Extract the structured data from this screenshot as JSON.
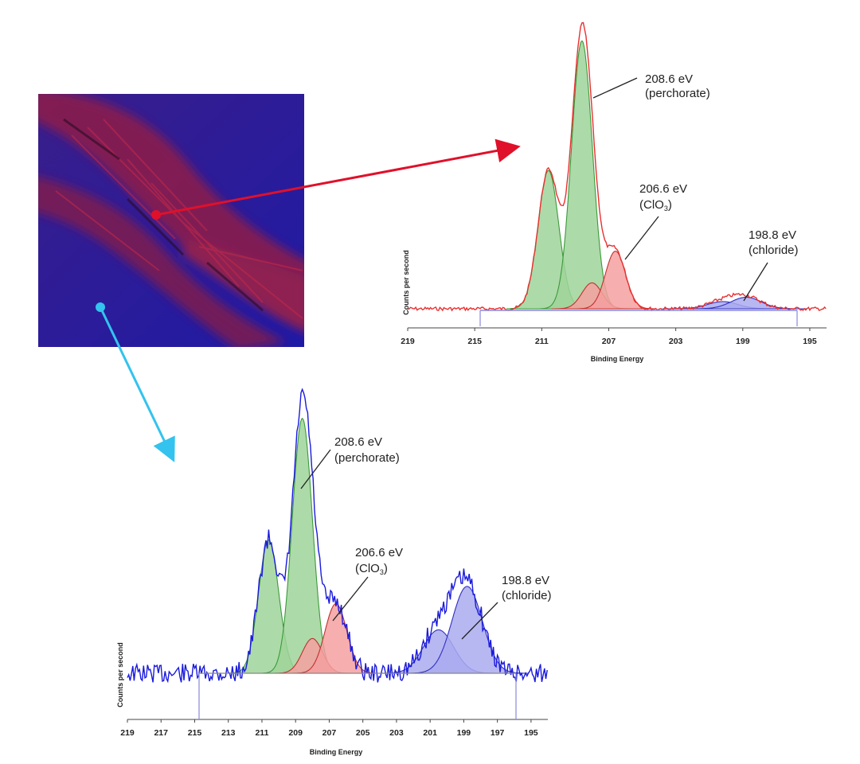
{
  "colors": {
    "surface_red": "#b0203a",
    "surface_blue": "#2a1fa8",
    "arrow_red": "#e0102a",
    "arrow_cyan": "#33c3ee",
    "spectrum_top": "#e83030",
    "spectrum_bottom": "#1a1adc",
    "peak_green": "#9fd49a",
    "peak_red": "#f4a0a0",
    "peak_blue": "#aaaaf0"
  },
  "chart_data": [
    {
      "type": "line",
      "id": "top-spectrum",
      "xlabel": "Binding Energy",
      "ylabel": "Counts per second",
      "xlim": [
        219,
        194
      ],
      "x_reversed": true,
      "ylim": [
        0,
        100
      ],
      "xticks": [
        "219",
        "215",
        "211",
        "207",
        "203",
        "199",
        "195"
      ],
      "grid": false,
      "measured_color": "#e83030",
      "components": [
        {
          "center": 210.6,
          "sigma": 0.62,
          "amp": 48,
          "color": "#9fd49a",
          "stroke": "#3a9a3a"
        },
        {
          "center": 208.6,
          "sigma": 0.62,
          "amp": 93,
          "color": "#9fd49a",
          "stroke": "#3a9a3a"
        },
        {
          "center": 208.0,
          "sigma": 0.6,
          "amp": 9,
          "color": "#f4a0a0",
          "stroke": "#c03030"
        },
        {
          "center": 206.6,
          "sigma": 0.6,
          "amp": 20,
          "color": "#f4a0a0",
          "stroke": "#c03030"
        },
        {
          "center": 200.2,
          "sigma": 0.9,
          "amp": 2.5,
          "color": "#aaaaf0",
          "stroke": "#3030c0"
        },
        {
          "center": 198.8,
          "sigma": 0.9,
          "amp": 4,
          "color": "#aaaaf0",
          "stroke": "#3030c0"
        }
      ],
      "annotations": [
        {
          "energy": "208.6 eV",
          "species": "(perchorate)"
        },
        {
          "energy": "206.6 eV",
          "species": "(ClO",
          "subscript": "3",
          "close": ")"
        },
        {
          "energy": "198.8 eV",
          "species": "(chloride)"
        }
      ]
    },
    {
      "type": "line",
      "id": "bottom-spectrum",
      "xlabel": "Binding Energy",
      "ylabel": "Counts per second",
      "xlim": [
        219,
        194
      ],
      "x_reversed": true,
      "ylim": [
        0,
        100
      ],
      "xticks": [
        "219",
        "217",
        "215",
        "213",
        "211",
        "209",
        "207",
        "205",
        "203",
        "201",
        "199",
        "197",
        "195"
      ],
      "grid": false,
      "measured_color": "#1a1adc",
      "components": [
        {
          "center": 210.6,
          "sigma": 0.6,
          "amp": 46,
          "color": "#9fd49a",
          "stroke": "#3a9a3a"
        },
        {
          "center": 208.6,
          "sigma": 0.6,
          "amp": 88,
          "color": "#9fd49a",
          "stroke": "#3a9a3a"
        },
        {
          "center": 208.0,
          "sigma": 0.6,
          "amp": 12,
          "color": "#f4a0a0",
          "stroke": "#c03030"
        },
        {
          "center": 206.6,
          "sigma": 0.65,
          "amp": 24,
          "color": "#f4a0a0",
          "stroke": "#c03030"
        },
        {
          "center": 200.5,
          "sigma": 0.9,
          "amp": 15,
          "color": "#aaaaf0",
          "stroke": "#3030c0"
        },
        {
          "center": 198.8,
          "sigma": 0.9,
          "amp": 30,
          "color": "#aaaaf0",
          "stroke": "#3030c0"
        }
      ],
      "annotations": [
        {
          "energy": "208.6 eV",
          "species": "(perchorate)"
        },
        {
          "energy": "206.6 eV",
          "species": "(ClO",
          "subscript": "3",
          "close": ")"
        },
        {
          "energy": "198.8 eV",
          "species": "(chloride)"
        }
      ]
    }
  ]
}
